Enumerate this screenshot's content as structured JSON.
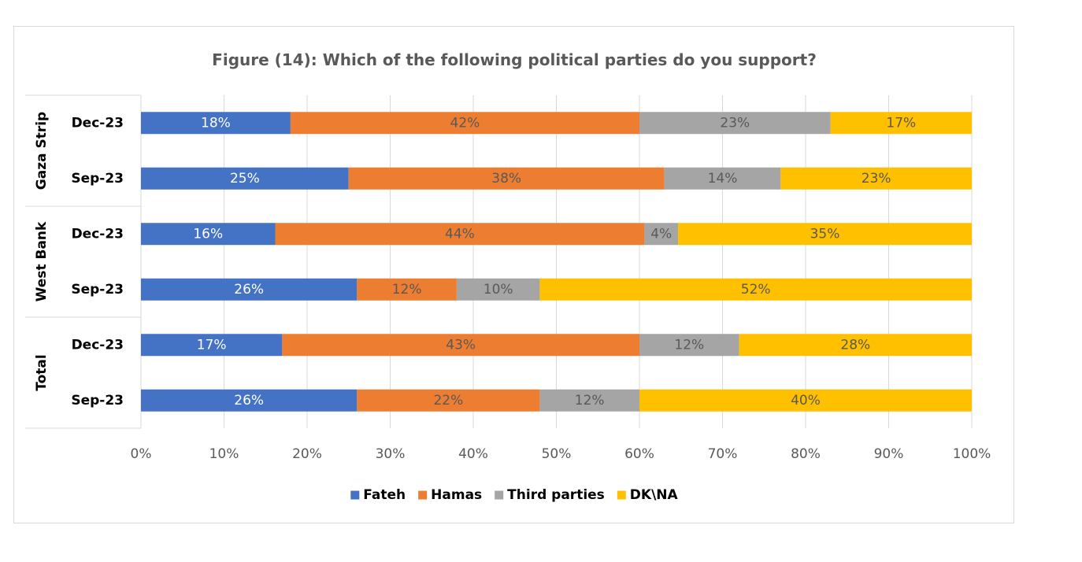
{
  "chart_data": {
    "type": "bar",
    "orientation": "horizontal",
    "stacked": "100%",
    "title": "Figure (14): Which of the following political parties do you support?",
    "groups": [
      {
        "name": "Gaza Strip",
        "rows": [
          "Dec-23",
          "Sep-23"
        ]
      },
      {
        "name": "West Bank",
        "rows": [
          "Dec-23",
          "Sep-23"
        ]
      },
      {
        "name": "Total",
        "rows": [
          "Dec-23",
          "Sep-23"
        ]
      }
    ],
    "categories": [
      "Gaza Strip | Dec-23",
      "Gaza Strip | Sep-23",
      "West Bank | Dec-23",
      "West Bank | Sep-23",
      "Total | Dec-23",
      "Total | Sep-23"
    ],
    "series": [
      {
        "name": "Fateh",
        "color": "#4472c4",
        "label_color": "#ffffff",
        "values": [
          18,
          25,
          16,
          26,
          17,
          26
        ]
      },
      {
        "name": "Hamas",
        "color": "#ed7d31",
        "label_color": "#595959",
        "values": [
          42,
          38,
          44,
          12,
          43,
          22
        ]
      },
      {
        "name": "Third parties",
        "color": "#a5a5a5",
        "label_color": "#595959",
        "values": [
          23,
          14,
          4,
          10,
          12,
          12
        ]
      },
      {
        "name": "DK\\NA",
        "color": "#ffc000",
        "label_color": "#595959",
        "values": [
          17,
          23,
          35,
          52,
          28,
          40
        ]
      }
    ],
    "xlim": [
      0,
      100
    ],
    "xticks": [
      "0%",
      "10%",
      "20%",
      "30%",
      "40%",
      "50%",
      "60%",
      "70%",
      "80%",
      "90%",
      "100%"
    ],
    "grid": true,
    "legend_position": "bottom"
  }
}
